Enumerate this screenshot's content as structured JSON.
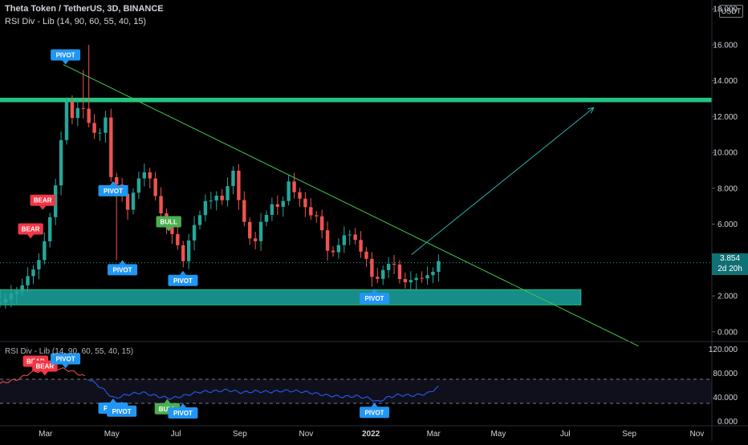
{
  "header": {
    "title": "Theta Token / TetherUS, 3D, BINANCE",
    "indicator": "RSI Div - Lib (14, 90, 60, 55, 40, 15)",
    "currency_button": "USDT"
  },
  "price_tag": {
    "value": "3.854",
    "countdown": "2d 20h"
  },
  "rsi_panel": {
    "label": "RSI Div - Lib (14, 90, 60, 55, 40, 15)"
  },
  "colors": {
    "background": "#000000",
    "up_candle": "#26a69a",
    "down_candle": "#ef5350",
    "resistance_zone": "#26c281",
    "support_zone": "#1aa6a0",
    "trendline": "#43c84a",
    "projection_arrow": "#2bb5b0",
    "rsi_line": "#2962ff",
    "rsi_early": "#ef5350",
    "pivot_label": "#2196f3",
    "bear_label": "#f23645",
    "bull_label": "#4caf50",
    "price_tag": "#0f7173"
  },
  "chart_data": {
    "type": "candlestick",
    "title": "Theta Token / TetherUS, 3D, BINANCE",
    "x_ticks": [
      "Mar",
      "May",
      "Jul",
      "Sep",
      "Nov",
      "2022",
      "Mar",
      "May",
      "Jul",
      "Sep",
      "Nov"
    ],
    "y_ticks": [
      "0.000",
      "2.000",
      "4.000",
      "6.000",
      "8.000",
      "10.000",
      "12.000",
      "14.000",
      "16.000",
      "18.000"
    ],
    "ylim": [
      -0.5,
      18.5
    ],
    "last_price": 3.854,
    "resistance_zone": [
      12.8,
      13.05
    ],
    "support_zone": [
      1.5,
      2.35
    ],
    "trendline": {
      "from": [
        0.089,
        14.9
      ],
      "to": [
        0.897,
        -0.8
      ]
    },
    "projection_arrow": {
      "from": [
        0.578,
        4.3
      ],
      "to": [
        0.834,
        12.5
      ]
    },
    "anchors": [
      [
        0.0,
        1.6
      ],
      [
        0.03,
        2.5
      ],
      [
        0.055,
        4.0
      ],
      [
        0.065,
        5.5
      ],
      [
        0.075,
        7.0
      ],
      [
        0.082,
        9.5
      ],
      [
        0.092,
        12.8
      ],
      [
        0.102,
        12.0
      ],
      [
        0.112,
        12.6
      ],
      [
        0.124,
        11.8
      ],
      [
        0.135,
        10.8
      ],
      [
        0.148,
        11.9
      ],
      [
        0.156,
        8.5
      ],
      [
        0.166,
        8.2
      ],
      [
        0.178,
        6.8
      ],
      [
        0.19,
        8.0
      ],
      [
        0.203,
        9.0
      ],
      [
        0.216,
        8.1
      ],
      [
        0.226,
        6.5
      ],
      [
        0.236,
        5.7
      ],
      [
        0.246,
        5.3
      ],
      [
        0.256,
        3.8
      ],
      [
        0.266,
        5.2
      ],
      [
        0.276,
        6.2
      ],
      [
        0.288,
        7.2
      ],
      [
        0.3,
        7.6
      ],
      [
        0.313,
        7.2
      ],
      [
        0.326,
        9.1
      ],
      [
        0.338,
        7.0
      ],
      [
        0.348,
        5.2
      ],
      [
        0.358,
        5.0
      ],
      [
        0.37,
        6.5
      ],
      [
        0.382,
        7.0
      ],
      [
        0.394,
        6.8
      ],
      [
        0.404,
        8.3
      ],
      [
        0.416,
        7.8
      ],
      [
        0.428,
        6.8
      ],
      [
        0.44,
        6.5
      ],
      [
        0.45,
        6.2
      ],
      [
        0.458,
        4.5
      ],
      [
        0.468,
        4.4
      ],
      [
        0.478,
        5.0
      ],
      [
        0.488,
        5.6
      ],
      [
        0.498,
        5.2
      ],
      [
        0.508,
        4.3
      ],
      [
        0.518,
        4.0
      ],
      [
        0.524,
        2.7
      ],
      [
        0.532,
        3.1
      ],
      [
        0.542,
        3.6
      ],
      [
        0.552,
        4.0
      ],
      [
        0.56,
        2.9
      ],
      [
        0.57,
        2.8
      ],
      [
        0.58,
        2.9
      ],
      [
        0.592,
        3.0
      ],
      [
        0.605,
        3.2
      ],
      [
        0.616,
        3.9
      ]
    ],
    "spikes": [
      [
        0.126,
        16.0
      ],
      [
        0.118,
        14.6
      ],
      [
        0.165,
        4.0
      ],
      [
        0.257,
        3.6
      ]
    ],
    "price_labels": [
      {
        "text": "PIVOT",
        "kind": "pivot",
        "x": 0.092,
        "y": 14.9,
        "pos": "above"
      },
      {
        "text": "BEAR",
        "kind": "bear",
        "x": 0.06,
        "y": 6.8,
        "pos": "above"
      },
      {
        "text": "BEAR",
        "kind": "bear",
        "x": 0.043,
        "y": 5.2,
        "pos": "above"
      },
      {
        "text": "PIVOT",
        "kind": "pivot",
        "x": 0.159,
        "y": 8.4,
        "pos": "below"
      },
      {
        "text": "BULL",
        "kind": "bull",
        "x": 0.237,
        "y": 5.6,
        "pos": "above"
      },
      {
        "text": "PIVOT",
        "kind": "pivot",
        "x": 0.172,
        "y": 4.0,
        "pos": "below"
      },
      {
        "text": "PIVOT",
        "kind": "pivot",
        "x": 0.257,
        "y": 3.4,
        "pos": "below"
      },
      {
        "text": "PIVOT",
        "kind": "pivot",
        "x": 0.526,
        "y": 2.4,
        "pos": "below"
      }
    ],
    "rsi": {
      "y_ticks": [
        "0.000",
        "40.000",
        "80.000",
        "120.000"
      ],
      "ylim": [
        -6,
        130
      ],
      "band": [
        30,
        70
      ],
      "anchors": [
        [
          0.0,
          63
        ],
        [
          0.025,
          70
        ],
        [
          0.045,
          82
        ],
        [
          0.065,
          85
        ],
        [
          0.085,
          88
        ],
        [
          0.1,
          84
        ],
        [
          0.12,
          74
        ],
        [
          0.14,
          58
        ],
        [
          0.16,
          38
        ],
        [
          0.18,
          45
        ],
        [
          0.2,
          48
        ],
        [
          0.22,
          42
        ],
        [
          0.24,
          38
        ],
        [
          0.26,
          43
        ],
        [
          0.28,
          49
        ],
        [
          0.3,
          50
        ],
        [
          0.32,
          52
        ],
        [
          0.34,
          48
        ],
        [
          0.36,
          50
        ],
        [
          0.38,
          49
        ],
        [
          0.4,
          51
        ],
        [
          0.42,
          50
        ],
        [
          0.44,
          47
        ],
        [
          0.46,
          43
        ],
        [
          0.48,
          41
        ],
        [
          0.5,
          42
        ],
        [
          0.52,
          38
        ],
        [
          0.53,
          32
        ],
        [
          0.545,
          40
        ],
        [
          0.56,
          44
        ],
        [
          0.58,
          43
        ],
        [
          0.6,
          46
        ],
        [
          0.616,
          57
        ]
      ],
      "labels": [
        {
          "text": "BEAR",
          "kind": "bear",
          "x": 0.05,
          "y": 84,
          "pos": "above"
        },
        {
          "text": "BEAR",
          "kind": "bear",
          "x": 0.063,
          "y": 76,
          "pos": "above"
        },
        {
          "text": "PIVOT",
          "kind": "pivot",
          "x": 0.092,
          "y": 88,
          "pos": "above"
        },
        {
          "text": "PIVOT",
          "kind": "pivot",
          "x": 0.159,
          "y": 38,
          "pos": "below"
        },
        {
          "text": "PIVOT",
          "kind": "pivot",
          "x": 0.171,
          "y": 33,
          "pos": "below"
        },
        {
          "text": "BULL",
          "kind": "bull",
          "x": 0.235,
          "y": 37,
          "pos": "below"
        },
        {
          "text": "PIVOT",
          "kind": "pivot",
          "x": 0.257,
          "y": 30,
          "pos": "below"
        },
        {
          "text": "PIVOT",
          "kind": "pivot",
          "x": 0.526,
          "y": 31,
          "pos": "below"
        }
      ]
    }
  }
}
